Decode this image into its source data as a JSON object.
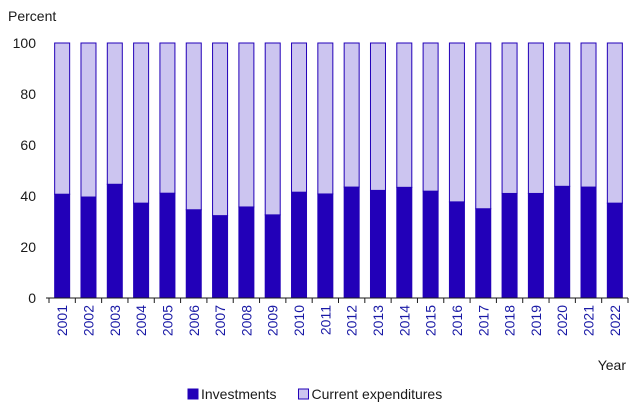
{
  "chart_data": {
    "type": "bar",
    "stacked": true,
    "ylabel": "Percent",
    "xlabel": "Year",
    "ylim": [
      0,
      100
    ],
    "yticks": [
      0,
      20,
      40,
      60,
      80,
      100
    ],
    "grid": false,
    "legend_position": "bottom",
    "categories": [
      "2001",
      "2002",
      "2003",
      "2004",
      "2005",
      "2006",
      "2007",
      "2008",
      "2009",
      "2010",
      "2011",
      "2012",
      "2013",
      "2014",
      "2015",
      "2016",
      "2017",
      "2018",
      "2019",
      "2020",
      "2021",
      "2022"
    ],
    "series": [
      {
        "name": "Investments",
        "color": "#2200b8",
        "values": [
          40.7,
          39.6,
          44.6,
          37.2,
          41.1,
          34.6,
          32.3,
          35.7,
          32.6,
          41.5,
          40.8,
          43.5,
          42.2,
          43.4,
          41.9,
          37.7,
          35.0,
          41.0,
          41.0,
          43.8,
          43.5,
          37.2
        ]
      },
      {
        "name": "Current expenditures",
        "color": "#ccc5f0",
        "values": [
          59.3,
          60.4,
          55.4,
          62.8,
          58.9,
          65.4,
          67.7,
          64.3,
          67.4,
          58.5,
          59.2,
          56.5,
          57.8,
          56.6,
          58.1,
          62.3,
          65.0,
          59.0,
          59.0,
          56.2,
          56.5,
          62.8
        ]
      }
    ]
  }
}
